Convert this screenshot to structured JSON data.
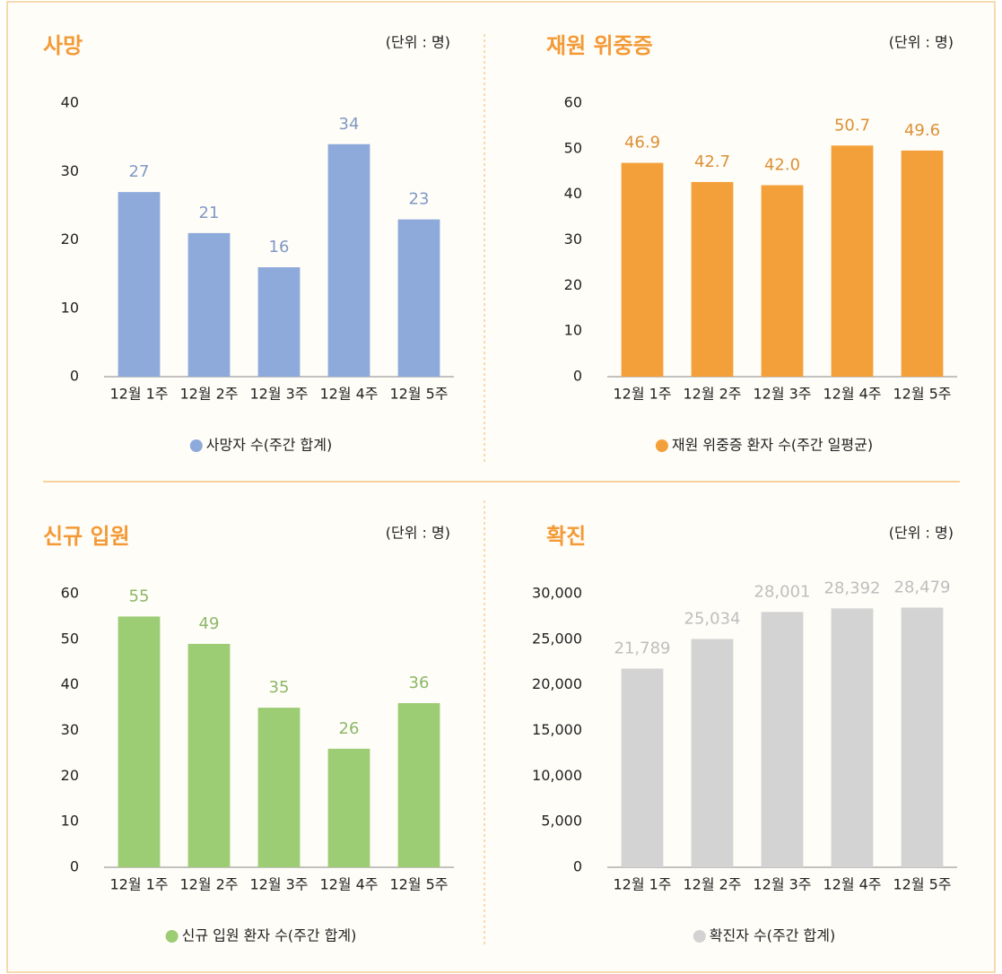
{
  "chart_data": [
    {
      "type": "bar",
      "title": "사망",
      "unit": "(단위 : 명)",
      "categories": [
        "12월 1주",
        "12월 2주",
        "12월 3주",
        "12월 4주",
        "12월 5주"
      ],
      "series": [
        {
          "name": "사망자 수(주간 합계)",
          "color": "#8eaadb",
          "values": [
            27,
            21,
            16,
            34,
            23
          ]
        }
      ],
      "ylim": [
        0,
        40
      ],
      "yticks": [
        0,
        10,
        20,
        30,
        40
      ]
    },
    {
      "type": "bar",
      "title": "재원 위중증",
      "unit": "(단위 : 명)",
      "categories": [
        "12월 1주",
        "12월 2주",
        "12월 3주",
        "12월 4주",
        "12월 5주"
      ],
      "series": [
        {
          "name": "재원 위중증 환자 수(주간 일평균)",
          "color": "#f4a03a",
          "values": [
            46.9,
            42.7,
            42.0,
            50.7,
            49.6
          ],
          "value_labels": [
            "46.9",
            "42.7",
            "42.0",
            "50.7",
            "49.6"
          ]
        }
      ],
      "ylim": [
        0,
        60
      ],
      "yticks": [
        0,
        10,
        20,
        30,
        40,
        50,
        60
      ]
    },
    {
      "type": "bar",
      "title": "신규 입원",
      "unit": "(단위 : 명)",
      "categories": [
        "12월 1주",
        "12월 2주",
        "12월 3주",
        "12월 4주",
        "12월 5주"
      ],
      "series": [
        {
          "name": "신규 입원 환자 수(주간 합계)",
          "color": "#9ccc74",
          "values": [
            55,
            49,
            35,
            26,
            36
          ]
        }
      ],
      "ylim": [
        0,
        60
      ],
      "yticks": [
        0,
        10,
        20,
        30,
        40,
        50,
        60
      ]
    },
    {
      "type": "bar",
      "title": "확진",
      "unit": "(단위 : 명)",
      "categories": [
        "12월 1주",
        "12월 2주",
        "12월 3주",
        "12월 4주",
        "12월 5주"
      ],
      "series": [
        {
          "name": "확진자 수(주간 합계)",
          "color": "#d3d3d3",
          "values": [
            21789,
            25034,
            28001,
            28392,
            28479
          ],
          "value_labels": [
            "21,789",
            "25,034",
            "28,001",
            "28,392",
            "28,479"
          ]
        }
      ],
      "ylim": [
        0,
        30000
      ],
      "yticks": [
        0,
        {
          "value": 5000,
          "label": "5,000"
        },
        {
          "value": 10000,
          "label": "10,000"
        },
        {
          "value": 15000,
          "label": "15,000"
        },
        {
          "value": 20000,
          "label": "20,000"
        },
        {
          "value": 25000,
          "label": "25,000"
        },
        {
          "value": 30000,
          "label": "30,000"
        }
      ]
    }
  ]
}
